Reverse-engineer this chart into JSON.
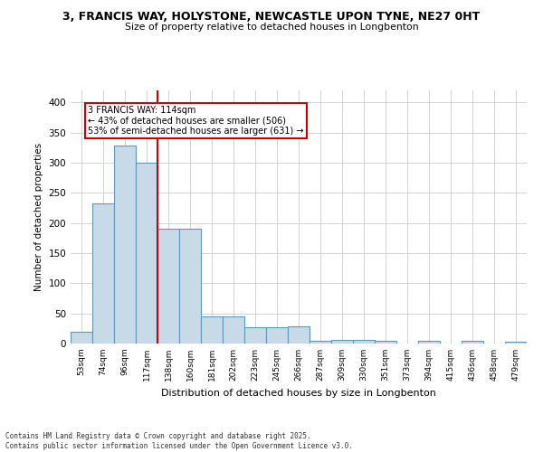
{
  "title1": "3, FRANCIS WAY, HOLYSTONE, NEWCASTLE UPON TYNE, NE27 0HT",
  "title2": "Size of property relative to detached houses in Longbenton",
  "xlabel": "Distribution of detached houses by size in Longbenton",
  "ylabel": "Number of detached properties",
  "bar_labels": [
    "53sqm",
    "74sqm",
    "96sqm",
    "117sqm",
    "138sqm",
    "160sqm",
    "181sqm",
    "202sqm",
    "223sqm",
    "245sqm",
    "266sqm",
    "287sqm",
    "309sqm",
    "330sqm",
    "351sqm",
    "373sqm",
    "394sqm",
    "415sqm",
    "436sqm",
    "458sqm",
    "479sqm"
  ],
  "bar_values": [
    20,
    232,
    328,
    300,
    190,
    190,
    45,
    45,
    27,
    27,
    28,
    5,
    6,
    6,
    4,
    0,
    5,
    0,
    5,
    0,
    3
  ],
  "bar_color": "#c8d9e8",
  "bar_edgecolor": "#5a9abd",
  "vline_x": 3.5,
  "vline_color": "#cc0000",
  "annotation_text": "3 FRANCIS WAY: 114sqm\n← 43% of detached houses are smaller (506)\n53% of semi-detached houses are larger (631) →",
  "annotation_box_color": "#cc0000",
  "annotation_text_color": "#000000",
  "footer": "Contains HM Land Registry data © Crown copyright and database right 2025.\nContains public sector information licensed under the Open Government Licence v3.0.",
  "ylim": [
    0,
    420
  ],
  "yticks": [
    0,
    50,
    100,
    150,
    200,
    250,
    300,
    350,
    400
  ],
  "bg_color": "#ffffff",
  "grid_color": "#cccccc"
}
